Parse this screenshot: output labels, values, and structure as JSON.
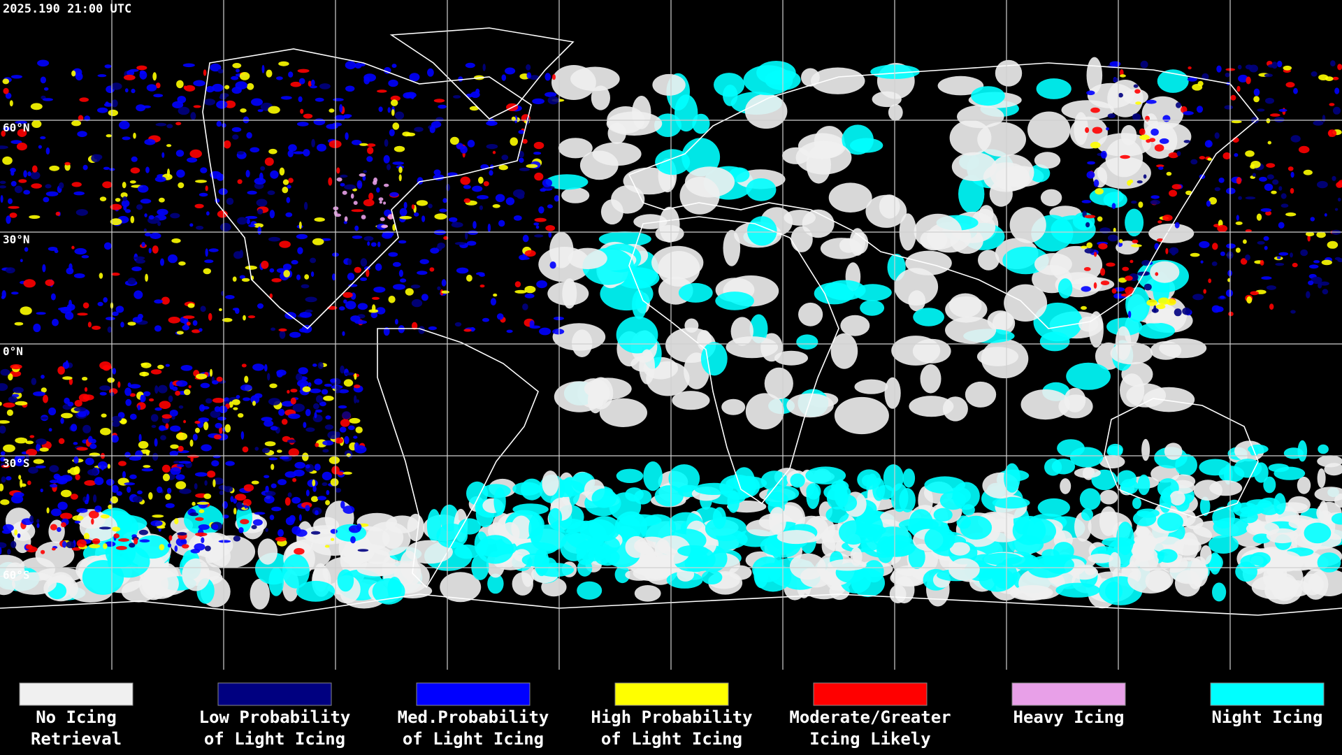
{
  "header": {
    "timestamp": "2025.190 21:00 UTC"
  },
  "grid": {
    "lat_ticks": [
      {
        "value": 60,
        "label": "60°N"
      },
      {
        "value": 30,
        "label": "30°N"
      },
      {
        "value": 0,
        "label": "0°N"
      },
      {
        "value": -30,
        "label": "30°S"
      },
      {
        "value": -60,
        "label": "60°S"
      }
    ]
  },
  "legend": [
    {
      "label": [
        "No Icing",
        "Retrieval"
      ],
      "color": "#f0f0f0"
    },
    {
      "label": [
        "Low Probability",
        "of Light Icing"
      ],
      "color": "#000080"
    },
    {
      "label": [
        "Med.Probability",
        "of Light Icing"
      ],
      "color": "#0000ff"
    },
    {
      "label": [
        "High Probability",
        "of Light Icing"
      ],
      "color": "#ffff00"
    },
    {
      "label": [
        "Moderate/Greater",
        "Icing Likely"
      ],
      "color": "#ff0000"
    },
    {
      "label": [
        "Heavy Icing"
      ],
      "color": "#e8a0e8"
    },
    {
      "label": [
        "Night Icing"
      ],
      "color": "#00ffff"
    }
  ]
}
